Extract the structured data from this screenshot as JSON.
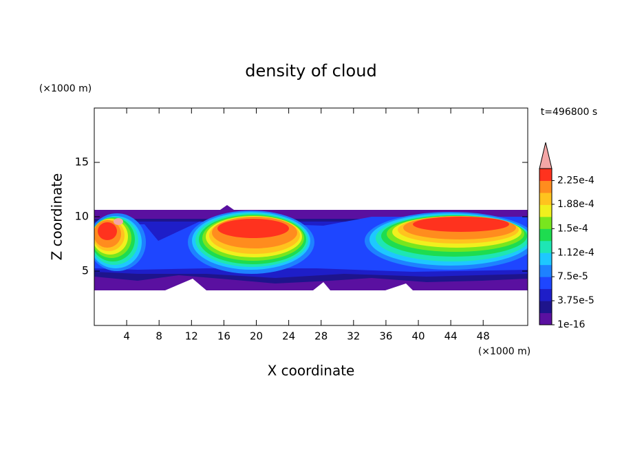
{
  "chart_data": {
    "type": "contour",
    "title": "density of cloud",
    "subtitle": "t=496800 s",
    "x_label": "X coordinate",
    "y_label": "Z coordinate",
    "x_unit": "(×1000 m)",
    "y_unit": "(×1000 m)",
    "xlim": [
      0,
      53.5
    ],
    "ylim": [
      0,
      20
    ],
    "xticks": [
      4,
      8,
      12,
      16,
      20,
      24,
      28,
      32,
      36,
      40,
      44,
      48
    ],
    "yticks": [
      5,
      10,
      15
    ],
    "colorbar": {
      "lim": [
        0,
        0.00024375
      ],
      "colors": [
        "#5a10a0",
        "#1e148c",
        "#1e1ec8",
        "#1e46ff",
        "#1e82ff",
        "#1ec8ff",
        "#1ee6b4",
        "#1edc50",
        "#78e61e",
        "#f0f01e",
        "#ffc31e",
        "#ff8c1e",
        "#ff321e"
      ],
      "over_color": "#f4a6a6",
      "ticks": [
        {
          "value": 1e-16,
          "label": "1e-16"
        },
        {
          "value": 3.75e-05,
          "label": "3.75e-5"
        },
        {
          "value": 7.5e-05,
          "label": "7.5e-5"
        },
        {
          "value": 0.000112,
          "label": "1.12e-4"
        },
        {
          "value": 0.00015,
          "label": "1.5e-4"
        },
        {
          "value": 0.000188,
          "label": "1.88e-4"
        },
        {
          "value": 0.000225,
          "label": "2.25e-4"
        }
      ]
    }
  }
}
